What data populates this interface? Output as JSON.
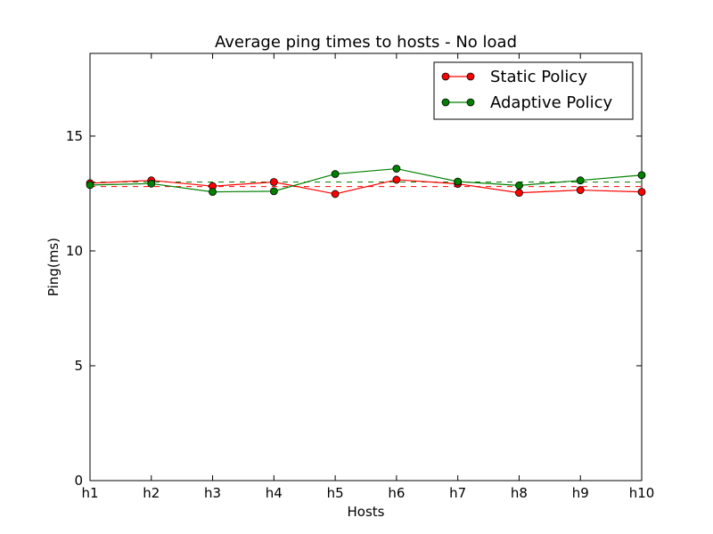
{
  "chart_data": {
    "type": "line",
    "title": "Average ping times to hosts - No load",
    "xlabel": "Hosts",
    "ylabel": "Ping(ms)",
    "categories": [
      "h1",
      "h2",
      "h3",
      "h4",
      "h5",
      "h6",
      "h7",
      "h8",
      "h9",
      "h10"
    ],
    "ylim": [
      0,
      18.6
    ],
    "yticks": [
      0,
      5,
      10,
      15
    ],
    "grid": false,
    "legend_position": "top-right",
    "series": [
      {
        "name": "Static Policy",
        "color": "#ff0000",
        "marker": "circle",
        "values": [
          12.95,
          13.07,
          12.82,
          13.0,
          12.48,
          13.1,
          12.92,
          12.53,
          12.65,
          12.57
        ],
        "mean": 12.8
      },
      {
        "name": "Adaptive Policy",
        "color": "#008000",
        "marker": "circle",
        "values": [
          12.87,
          12.93,
          12.57,
          12.6,
          13.35,
          13.58,
          13.02,
          12.85,
          13.07,
          13.3
        ],
        "mean": 13.0
      }
    ]
  }
}
